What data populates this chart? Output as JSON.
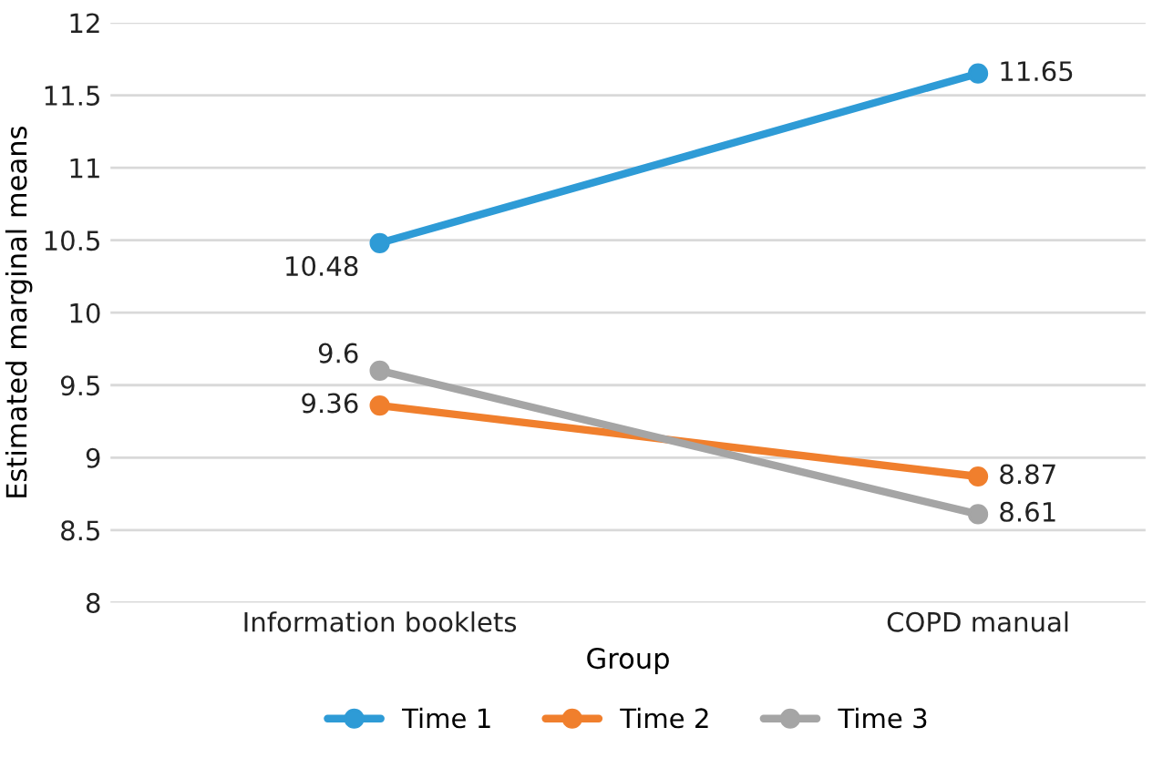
{
  "chart_data": {
    "type": "line",
    "xlabel": "Group",
    "ylabel": "Estimated marginal means",
    "categories": [
      "Information booklets",
      "COPD manual"
    ],
    "series": [
      {
        "name": "Time 1",
        "color": "#2e9bd6",
        "values": [
          10.48,
          11.65
        ]
      },
      {
        "name": "Time 2",
        "color": "#f07f2d",
        "values": [
          9.36,
          8.87
        ]
      },
      {
        "name": "Time 3",
        "color": "#a5a5a5",
        "values": [
          9.6,
          8.61
        ]
      }
    ],
    "ylim": [
      8,
      12
    ],
    "yticks": [
      8,
      8.5,
      9,
      9.5,
      10,
      10.5,
      11,
      11.5,
      12
    ],
    "grid": "y",
    "legend": "bottom",
    "marker": "circle",
    "line_style": "solid",
    "data_labels": true
  }
}
